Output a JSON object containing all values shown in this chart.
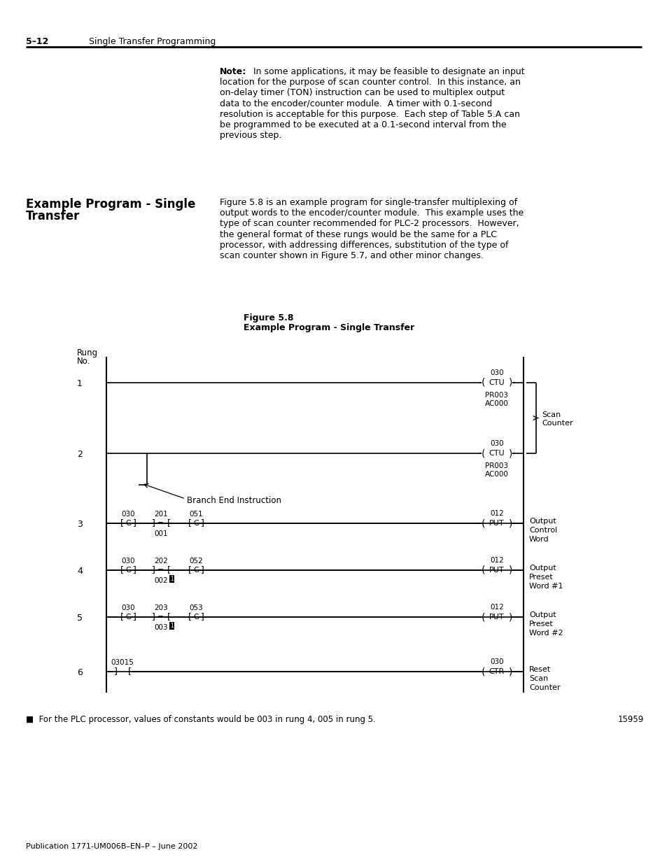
{
  "page_header_num": "5–12",
  "page_header_text": "Single Transfer Programming",
  "figure_title_line1": "Figure 5.8",
  "figure_title_line2": "Example Program - Single Transfer",
  "section_title_line1": "Example Program - Single",
  "section_title_line2": "Transfer",
  "footnote": "■  For the PLC processor, values of constants would be 003 in rung 4, 005 in rung 5.",
  "page_footer": "Publication 1771-UM006B–EN–P – June 2002",
  "page_number": "15959",
  "bg_color": "#ffffff",
  "text_color": "#000000",
  "note_bold": "Note:",
  "note_rest": "  In some applications, it may be feasible to designate an input",
  "note_lines": [
    "location for the purpose of scan counter control.  In this instance, an",
    "on-delay timer (TON) instruction can be used to multiplex output",
    "data to the encoder/counter module.  A timer with 0.1-second",
    "resolution is acceptable for this purpose.  Each step of Table 5.A can",
    "be programmed to be executed at a 0.1-second interval from the",
    "previous step."
  ],
  "body_lines": [
    "Figure 5.8 is an example program for single-transfer multiplexing of",
    "output words to the encoder/counter module.  This example uses the",
    "type of scan counter recommended for PLC-2 processors.  However,",
    "the general format of these rungs would be the same for a PLC",
    "processor, with addressing differences, substitution of the type of",
    "scan counter shown in Figure 5.7, and other minor changes."
  ]
}
